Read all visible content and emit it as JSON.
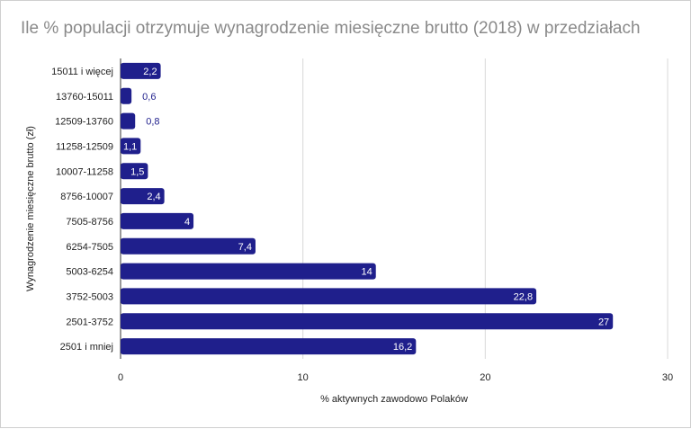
{
  "chart_data": {
    "type": "bar",
    "orientation": "horizontal",
    "title": "Ile % populacji otrzymuje wynagrodzenie miesięczne brutto (2018) w przedziałach",
    "xlabel": "% aktywnych zawodowo Polaków",
    "ylabel": "Wynagrodzenie miesięczne brutto (zł)",
    "xlim": [
      0,
      30
    ],
    "xticks": [
      "0",
      "10",
      "20",
      "30"
    ],
    "grid": true,
    "legend": "none",
    "bar_color": "#1f1f8c",
    "categories": [
      "15011 i więcej",
      "13760-15011",
      "12509-13760",
      "11258-12509",
      "10007-11258",
      "8756-10007",
      "7505-8756",
      "6254-7505",
      "5003-6254",
      "3752-5003",
      "2501-3752",
      "2501 i mniej"
    ],
    "values": [
      2.2,
      0.6,
      0.8,
      1.1,
      1.5,
      2.4,
      4,
      7.4,
      14,
      22.8,
      27,
      16.2
    ],
    "value_labels": [
      "2,2",
      "0,6",
      "0,8",
      "1,1",
      "1,5",
      "2,4",
      "4",
      "7,4",
      "14",
      "22,8",
      "27",
      "16,2"
    ]
  }
}
